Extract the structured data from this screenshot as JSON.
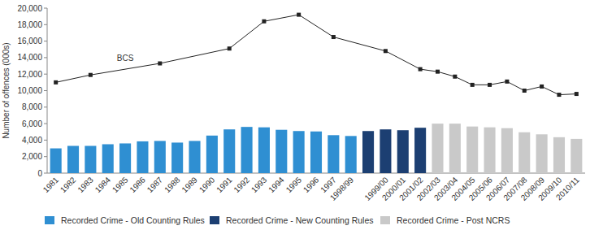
{
  "chart_data": {
    "type": "bar",
    "y_label": "Number of offences (000s)",
    "categories": [
      "1981",
      "1982",
      "1983",
      "1984",
      "1985",
      "1986",
      "1987",
      "1988",
      "1989",
      "1990",
      "1991",
      "1992",
      "1993",
      "1994",
      "1995",
      "1996",
      "1997",
      "1998/99",
      null,
      "1999/00",
      "2000/01",
      "2001/02",
      "2002/03",
      "2003/04",
      "2004/05",
      "2005/06",
      "2006/07",
      "2007/08",
      "2008/09",
      "2009/10",
      "2010/11"
    ],
    "series": [
      {
        "name": "Recorded Crime - Old Counting Rules",
        "type": "bar",
        "color": "#2f8fd2",
        "values": [
          3000,
          3300,
          3300,
          3500,
          3600,
          3850,
          3900,
          3700,
          3900,
          4550,
          5300,
          5600,
          5550,
          5250,
          5100,
          5050,
          4600,
          4500,
          null,
          null,
          null,
          null,
          null,
          null,
          null,
          null,
          null,
          null,
          null,
          null,
          null
        ]
      },
      {
        "name": "Recorded Crime - New Counting Rules",
        "type": "bar",
        "color": "#1c3f72",
        "values": [
          null,
          null,
          null,
          null,
          null,
          null,
          null,
          null,
          null,
          null,
          null,
          null,
          null,
          null,
          null,
          null,
          null,
          null,
          5100,
          5300,
          5200,
          5500,
          null,
          null,
          null,
          null,
          null,
          null,
          null,
          null,
          null
        ]
      },
      {
        "name": "Recorded Crime - Post NCRS",
        "type": "bar",
        "color": "#c9c9c9",
        "values": [
          null,
          null,
          null,
          null,
          null,
          null,
          null,
          null,
          null,
          null,
          null,
          null,
          null,
          null,
          null,
          null,
          null,
          null,
          null,
          null,
          null,
          null,
          6000,
          6000,
          5650,
          5550,
          5450,
          4950,
          4700,
          4350,
          4150
        ]
      },
      {
        "name": "BCS",
        "type": "line",
        "color": "#222222",
        "marker": "square",
        "x": [
          "1981",
          "1983",
          "1987",
          "1991",
          "1993",
          "1995",
          "1997",
          "1999/00",
          "2001/02",
          "2002/03",
          "2003/04",
          "2004/05",
          "2005/06",
          "2006/07",
          "2007/08",
          "2008/09",
          "2009/10",
          "2010/11"
        ],
        "values": [
          11000,
          11900,
          13300,
          15100,
          18400,
          19200,
          16500,
          14800,
          12600,
          12300,
          11700,
          10700,
          10700,
          11100,
          10000,
          10500,
          9500,
          9600
        ]
      }
    ],
    "ylim": [
      0,
      20000
    ],
    "yticks": [
      0,
      {
        "value": 2000,
        "label": "2,000"
      },
      {
        "value": 4000,
        "label": "4,000"
      },
      {
        "value": 6000,
        "label": "6,000"
      },
      {
        "value": 8000,
        "label": "8,000"
      },
      {
        "value": 10000,
        "label": "10,000"
      },
      {
        "value": 12000,
        "label": "12,000"
      },
      {
        "value": 14000,
        "label": "14,000"
      },
      {
        "value": 16000,
        "label": "16,000"
      },
      {
        "value": 18000,
        "label": "18,000"
      },
      {
        "value": 20000,
        "label": "20,000"
      }
    ],
    "grid": false,
    "legend": "bottom"
  }
}
